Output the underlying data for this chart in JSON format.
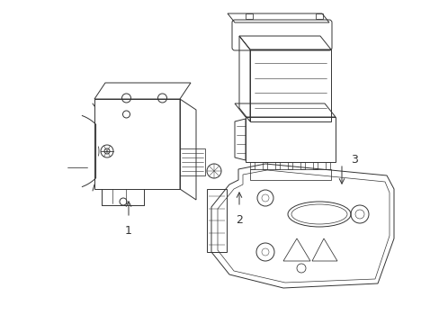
{
  "background_color": "#ffffff",
  "line_color": "#333333",
  "line_width": 0.7,
  "fig_width": 4.89,
  "fig_height": 3.6,
  "dpi": 100
}
